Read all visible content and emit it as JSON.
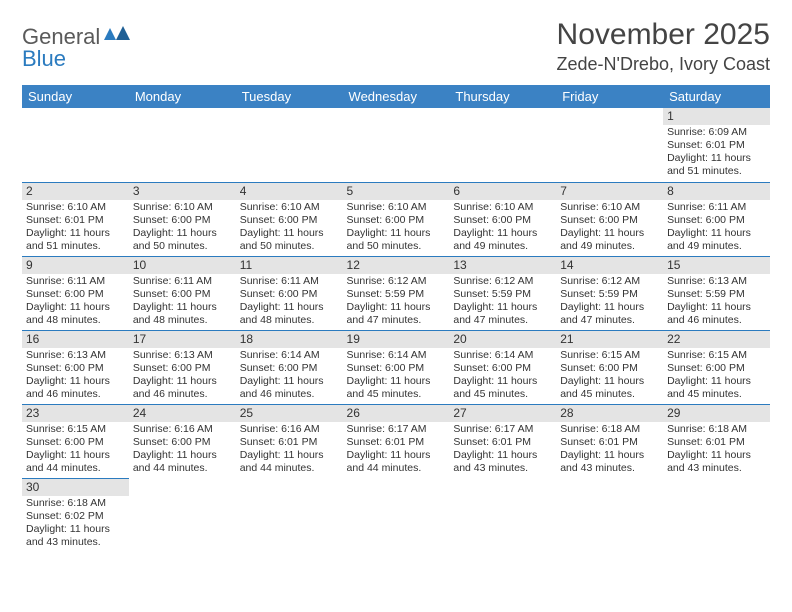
{
  "logo": {
    "general": "General",
    "blue": "Blue"
  },
  "title": "November 2025",
  "location": "Zede-N'Drebo, Ivory Coast",
  "colors": {
    "header_bg": "#3b82c4",
    "header_text": "#ffffff",
    "border": "#2b7bbf",
    "daynum_bg": "#e4e4e4",
    "text": "#333333",
    "logo_blue": "#2b7bbf",
    "logo_gray": "#5a5a5a"
  },
  "days_of_week": [
    "Sunday",
    "Monday",
    "Tuesday",
    "Wednesday",
    "Thursday",
    "Friday",
    "Saturday"
  ],
  "weeks": [
    [
      {
        "n": "",
        "sr": "",
        "ss": "",
        "dl": ""
      },
      {
        "n": "",
        "sr": "",
        "ss": "",
        "dl": ""
      },
      {
        "n": "",
        "sr": "",
        "ss": "",
        "dl": ""
      },
      {
        "n": "",
        "sr": "",
        "ss": "",
        "dl": ""
      },
      {
        "n": "",
        "sr": "",
        "ss": "",
        "dl": ""
      },
      {
        "n": "",
        "sr": "",
        "ss": "",
        "dl": ""
      },
      {
        "n": "1",
        "sr": "Sunrise: 6:09 AM",
        "ss": "Sunset: 6:01 PM",
        "dl": "Daylight: 11 hours and 51 minutes."
      }
    ],
    [
      {
        "n": "2",
        "sr": "Sunrise: 6:10 AM",
        "ss": "Sunset: 6:01 PM",
        "dl": "Daylight: 11 hours and 51 minutes."
      },
      {
        "n": "3",
        "sr": "Sunrise: 6:10 AM",
        "ss": "Sunset: 6:00 PM",
        "dl": "Daylight: 11 hours and 50 minutes."
      },
      {
        "n": "4",
        "sr": "Sunrise: 6:10 AM",
        "ss": "Sunset: 6:00 PM",
        "dl": "Daylight: 11 hours and 50 minutes."
      },
      {
        "n": "5",
        "sr": "Sunrise: 6:10 AM",
        "ss": "Sunset: 6:00 PM",
        "dl": "Daylight: 11 hours and 50 minutes."
      },
      {
        "n": "6",
        "sr": "Sunrise: 6:10 AM",
        "ss": "Sunset: 6:00 PM",
        "dl": "Daylight: 11 hours and 49 minutes."
      },
      {
        "n": "7",
        "sr": "Sunrise: 6:10 AM",
        "ss": "Sunset: 6:00 PM",
        "dl": "Daylight: 11 hours and 49 minutes."
      },
      {
        "n": "8",
        "sr": "Sunrise: 6:11 AM",
        "ss": "Sunset: 6:00 PM",
        "dl": "Daylight: 11 hours and 49 minutes."
      }
    ],
    [
      {
        "n": "9",
        "sr": "Sunrise: 6:11 AM",
        "ss": "Sunset: 6:00 PM",
        "dl": "Daylight: 11 hours and 48 minutes."
      },
      {
        "n": "10",
        "sr": "Sunrise: 6:11 AM",
        "ss": "Sunset: 6:00 PM",
        "dl": "Daylight: 11 hours and 48 minutes."
      },
      {
        "n": "11",
        "sr": "Sunrise: 6:11 AM",
        "ss": "Sunset: 6:00 PM",
        "dl": "Daylight: 11 hours and 48 minutes."
      },
      {
        "n": "12",
        "sr": "Sunrise: 6:12 AM",
        "ss": "Sunset: 5:59 PM",
        "dl": "Daylight: 11 hours and 47 minutes."
      },
      {
        "n": "13",
        "sr": "Sunrise: 6:12 AM",
        "ss": "Sunset: 5:59 PM",
        "dl": "Daylight: 11 hours and 47 minutes."
      },
      {
        "n": "14",
        "sr": "Sunrise: 6:12 AM",
        "ss": "Sunset: 5:59 PM",
        "dl": "Daylight: 11 hours and 47 minutes."
      },
      {
        "n": "15",
        "sr": "Sunrise: 6:13 AM",
        "ss": "Sunset: 5:59 PM",
        "dl": "Daylight: 11 hours and 46 minutes."
      }
    ],
    [
      {
        "n": "16",
        "sr": "Sunrise: 6:13 AM",
        "ss": "Sunset: 6:00 PM",
        "dl": "Daylight: 11 hours and 46 minutes."
      },
      {
        "n": "17",
        "sr": "Sunrise: 6:13 AM",
        "ss": "Sunset: 6:00 PM",
        "dl": "Daylight: 11 hours and 46 minutes."
      },
      {
        "n": "18",
        "sr": "Sunrise: 6:14 AM",
        "ss": "Sunset: 6:00 PM",
        "dl": "Daylight: 11 hours and 46 minutes."
      },
      {
        "n": "19",
        "sr": "Sunrise: 6:14 AM",
        "ss": "Sunset: 6:00 PM",
        "dl": "Daylight: 11 hours and 45 minutes."
      },
      {
        "n": "20",
        "sr": "Sunrise: 6:14 AM",
        "ss": "Sunset: 6:00 PM",
        "dl": "Daylight: 11 hours and 45 minutes."
      },
      {
        "n": "21",
        "sr": "Sunrise: 6:15 AM",
        "ss": "Sunset: 6:00 PM",
        "dl": "Daylight: 11 hours and 45 minutes."
      },
      {
        "n": "22",
        "sr": "Sunrise: 6:15 AM",
        "ss": "Sunset: 6:00 PM",
        "dl": "Daylight: 11 hours and 45 minutes."
      }
    ],
    [
      {
        "n": "23",
        "sr": "Sunrise: 6:15 AM",
        "ss": "Sunset: 6:00 PM",
        "dl": "Daylight: 11 hours and 44 minutes."
      },
      {
        "n": "24",
        "sr": "Sunrise: 6:16 AM",
        "ss": "Sunset: 6:00 PM",
        "dl": "Daylight: 11 hours and 44 minutes."
      },
      {
        "n": "25",
        "sr": "Sunrise: 6:16 AM",
        "ss": "Sunset: 6:01 PM",
        "dl": "Daylight: 11 hours and 44 minutes."
      },
      {
        "n": "26",
        "sr": "Sunrise: 6:17 AM",
        "ss": "Sunset: 6:01 PM",
        "dl": "Daylight: 11 hours and 44 minutes."
      },
      {
        "n": "27",
        "sr": "Sunrise: 6:17 AM",
        "ss": "Sunset: 6:01 PM",
        "dl": "Daylight: 11 hours and 43 minutes."
      },
      {
        "n": "28",
        "sr": "Sunrise: 6:18 AM",
        "ss": "Sunset: 6:01 PM",
        "dl": "Daylight: 11 hours and 43 minutes."
      },
      {
        "n": "29",
        "sr": "Sunrise: 6:18 AM",
        "ss": "Sunset: 6:01 PM",
        "dl": "Daylight: 11 hours and 43 minutes."
      }
    ],
    [
      {
        "n": "30",
        "sr": "Sunrise: 6:18 AM",
        "ss": "Sunset: 6:02 PM",
        "dl": "Daylight: 11 hours and 43 minutes."
      },
      {
        "n": "",
        "sr": "",
        "ss": "",
        "dl": ""
      },
      {
        "n": "",
        "sr": "",
        "ss": "",
        "dl": ""
      },
      {
        "n": "",
        "sr": "",
        "ss": "",
        "dl": ""
      },
      {
        "n": "",
        "sr": "",
        "ss": "",
        "dl": ""
      },
      {
        "n": "",
        "sr": "",
        "ss": "",
        "dl": ""
      },
      {
        "n": "",
        "sr": "",
        "ss": "",
        "dl": ""
      }
    ]
  ]
}
